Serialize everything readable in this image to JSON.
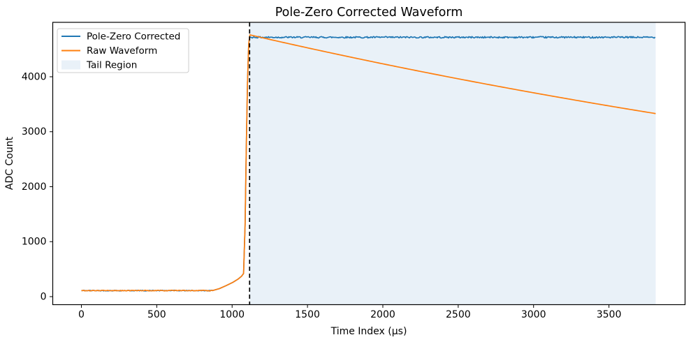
{
  "chart_data": {
    "type": "line",
    "title": "Pole-Zero Corrected Waveform",
    "xlabel": "Time Index (µs)",
    "ylabel": "ADC Count",
    "xlim": [
      -190,
      4005
    ],
    "ylim": [
      -146,
      4990
    ],
    "xticks": [
      0,
      500,
      1000,
      1500,
      2000,
      2500,
      3000,
      3500
    ],
    "yticks": [
      0,
      1000,
      2000,
      3000,
      4000
    ],
    "grid": false,
    "legend_position": "upper left",
    "series": [
      {
        "name": "Pole-Zero Corrected",
        "color": "#1f77b4",
        "linewidth": 1.7,
        "segments": [
          {
            "type": "flat_noise",
            "x0": 0,
            "x1": 870,
            "y": 110,
            "noise": 7,
            "step": 7
          },
          {
            "type": "points",
            "pts": [
              [
                870,
                110
              ],
              [
                915,
                145
              ],
              [
                960,
                200
              ],
              [
                1005,
                260
              ],
              [
                1040,
                320
              ],
              [
                1062,
                370
              ],
              [
                1076,
                420
              ]
            ]
          },
          {
            "type": "points",
            "pts": [
              [
                1076,
                420
              ],
              [
                1086,
                1300
              ],
              [
                1094,
                2700
              ],
              [
                1102,
                3900
              ],
              [
                1110,
                4580
              ],
              [
                1116,
                4722
              ]
            ]
          },
          {
            "type": "flat_noise",
            "x0": 1116,
            "x1": 3810,
            "y": 4718,
            "noise": 14,
            "step": 5
          }
        ]
      },
      {
        "name": "Raw Waveform",
        "color": "#ff7f0e",
        "linewidth": 1.7,
        "segments": [
          {
            "type": "flat_noise",
            "x0": 0,
            "x1": 870,
            "y": 110,
            "noise": 7,
            "step": 7
          },
          {
            "type": "points",
            "pts": [
              [
                870,
                110
              ],
              [
                915,
                145
              ],
              [
                960,
                200
              ],
              [
                1005,
                260
              ],
              [
                1040,
                320
              ],
              [
                1062,
                370
              ],
              [
                1076,
                420
              ]
            ]
          },
          {
            "type": "points",
            "pts": [
              [
                1076,
                420
              ],
              [
                1086,
                1300
              ],
              [
                1094,
                2700
              ],
              [
                1102,
                3900
              ],
              [
                1110,
                4600
              ],
              [
                1118,
                4762
              ]
            ]
          },
          {
            "type": "exp_decay",
            "x0": 1118,
            "x1": 3810,
            "y0": 4762,
            "y1": 3330,
            "step": 15
          }
        ]
      }
    ],
    "tail_region": {
      "label": "Tail Region",
      "x0": 1116,
      "x1": 3810,
      "color": "#e9f1f8"
    },
    "vline": {
      "x": 1116,
      "color": "#000000",
      "style": "dashed"
    }
  },
  "legend": {
    "items": [
      {
        "label": "Pole-Zero Corrected",
        "color": "#1f77b4",
        "type": "line"
      },
      {
        "label": "Raw Waveform",
        "color": "#ff7f0e",
        "type": "line"
      },
      {
        "label": "Tail Region",
        "color": "#e9f1f8",
        "type": "patch"
      }
    ]
  }
}
